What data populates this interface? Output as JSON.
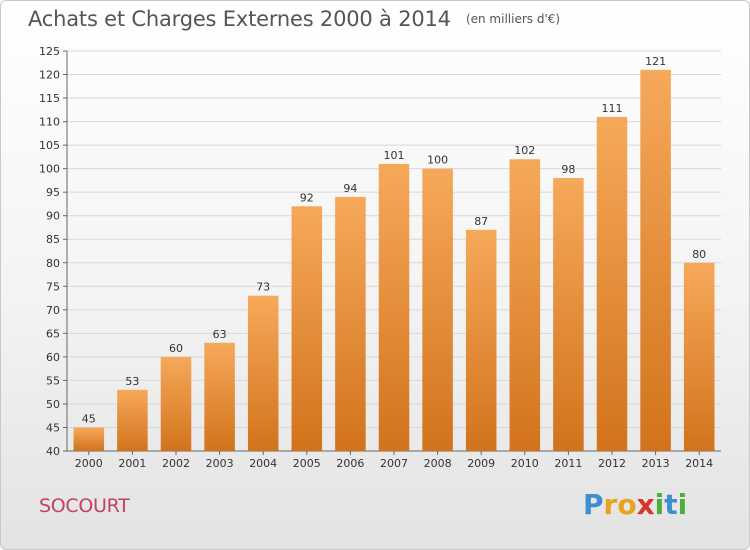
{
  "title": "Achats et Charges Externes 2000 à 2014",
  "unit": "(en milliers d'€)",
  "commune": "SOCOURT",
  "brand": {
    "letters": [
      {
        "ch": "P",
        "color": "#3d8fd0"
      },
      {
        "ch": "r",
        "color": "#e8a31f"
      },
      {
        "ch": "o",
        "color": "#e8a31f"
      },
      {
        "ch": "x",
        "color": "#d9342b"
      },
      {
        "ch": "i",
        "color": "#4caf3c"
      },
      {
        "ch": "t",
        "color": "#3d8fd0"
      },
      {
        "ch": "i",
        "color": "#4caf3c"
      }
    ]
  },
  "colors": {
    "bar_light": "#f6a95a",
    "bar_dark": "#d2731c",
    "axis": "#666666",
    "grid": "#d8d8d8"
  },
  "chart_data": {
    "type": "bar",
    "categories": [
      "2000",
      "2001",
      "2002",
      "2003",
      "2004",
      "2005",
      "2006",
      "2007",
      "2008",
      "2009",
      "2010",
      "2011",
      "2012",
      "2013",
      "2014"
    ],
    "values": [
      45,
      53,
      60,
      63,
      73,
      92,
      94,
      101,
      100,
      87,
      102,
      98,
      111,
      121,
      80
    ],
    "title": "Achats et Charges Externes 2000 à 2014",
    "xlabel": "",
    "ylabel": "",
    "ylim": [
      40,
      125
    ],
    "yticks": [
      40,
      45,
      50,
      55,
      60,
      65,
      70,
      75,
      80,
      85,
      90,
      95,
      100,
      105,
      110,
      115,
      120,
      125
    ],
    "grid": true,
    "legend": "none"
  }
}
